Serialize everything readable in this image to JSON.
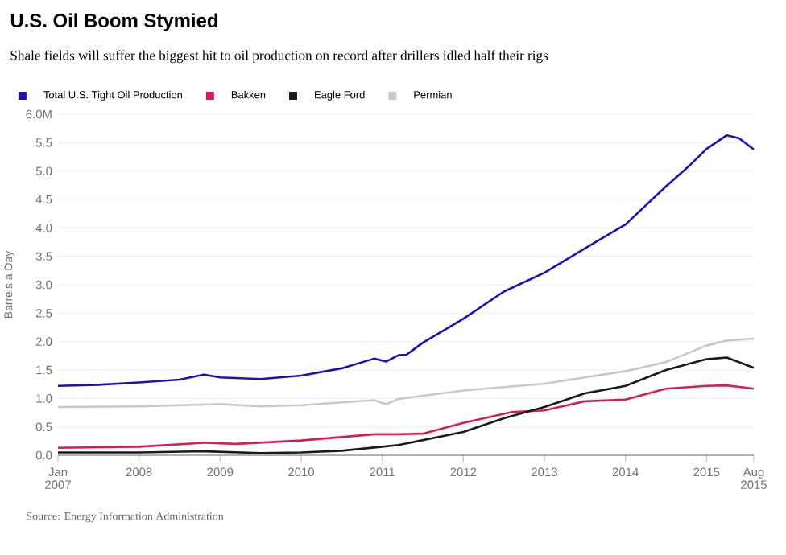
{
  "chart_data": {
    "type": "line",
    "title": "U.S. Oil Boom Stymied",
    "subtitle": "Shale fields will suffer the biggest hit to oil production on record after drillers idled half their rigs",
    "ylabel": "Barrels a Day",
    "annotations": [
      "Source: Energy Information Administration"
    ],
    "series": [
      {
        "name": "Total U.S. Tight Oil Production",
        "color": "#2010b0",
        "x": [
          2007.0,
          2007.5,
          2008.0,
          2008.5,
          2008.8,
          2009.0,
          2009.5,
          2010.0,
          2010.5,
          2010.9,
          2011.05,
          2011.2,
          2011.3,
          2011.5,
          2012.0,
          2012.5,
          2013.0,
          2013.5,
          2014.0,
          2014.5,
          2014.8,
          2015.0,
          2015.25,
          2015.4,
          2015.583
        ],
        "values": [
          1.22,
          1.24,
          1.28,
          1.33,
          1.42,
          1.37,
          1.34,
          1.4,
          1.53,
          1.7,
          1.65,
          1.76,
          1.77,
          1.98,
          2.4,
          2.88,
          3.21,
          3.64,
          4.06,
          4.73,
          5.11,
          5.39,
          5.63,
          5.58,
          5.38
        ]
      },
      {
        "name": "Bakken",
        "color": "#d81b60",
        "x": [
          2007.0,
          2008.0,
          2008.8,
          2009.2,
          2010.0,
          2010.5,
          2010.9,
          2011.2,
          2011.5,
          2012.0,
          2012.6,
          2013.0,
          2013.5,
          2014.0,
          2014.5,
          2015.0,
          2015.25,
          2015.583
        ],
        "values": [
          0.13,
          0.15,
          0.22,
          0.2,
          0.26,
          0.32,
          0.37,
          0.37,
          0.38,
          0.57,
          0.76,
          0.79,
          0.95,
          0.98,
          1.17,
          1.22,
          1.23,
          1.17
        ]
      },
      {
        "name": "Eagle Ford",
        "color": "#1a1a1a",
        "x": [
          2007.0,
          2008.0,
          2008.8,
          2009.5,
          2010.0,
          2010.5,
          2011.0,
          2011.2,
          2012.0,
          2012.5,
          2013.0,
          2013.5,
          2014.0,
          2014.5,
          2015.0,
          2015.25,
          2015.583
        ],
        "values": [
          0.05,
          0.05,
          0.07,
          0.04,
          0.05,
          0.08,
          0.15,
          0.18,
          0.41,
          0.65,
          0.85,
          1.09,
          1.22,
          1.5,
          1.69,
          1.72,
          1.54
        ]
      },
      {
        "name": "Permian",
        "color": "#c8c8c8",
        "x": [
          2007.0,
          2008.0,
          2009.0,
          2009.5,
          2010.0,
          2010.9,
          2011.05,
          2011.2,
          2012.0,
          2013.0,
          2014.0,
          2014.5,
          2015.0,
          2015.25,
          2015.583
        ],
        "values": [
          0.85,
          0.86,
          0.9,
          0.86,
          0.88,
          0.97,
          0.9,
          0.99,
          1.14,
          1.26,
          1.48,
          1.64,
          1.93,
          2.02,
          2.05
        ]
      }
    ],
    "xlim": [
      2007.0,
      2015.583
    ],
    "xticks": [
      {
        "value": 2007,
        "label": "Jan 2007"
      },
      2008,
      2009,
      2010,
      2011,
      2012,
      2013,
      2014,
      2015,
      {
        "value": 2015.583,
        "label": "Aug 2015"
      }
    ],
    "ylim": [
      0,
      6
    ],
    "yticks": [
      {
        "value": 0,
        "label": "0.0"
      },
      {
        "value": 0.5,
        "label": "0.5"
      },
      {
        "value": 1,
        "label": "1.0"
      },
      {
        "value": 1.5,
        "label": "1.5"
      },
      {
        "value": 2,
        "label": "2.0"
      },
      {
        "value": 2.5,
        "label": "2.5"
      },
      {
        "value": 3,
        "label": "3.0"
      },
      {
        "value": 3.5,
        "label": "3.5"
      },
      {
        "value": 4,
        "label": "4.0"
      },
      {
        "value": 4.5,
        "label": "4.5"
      },
      {
        "value": 5,
        "label": "5.0"
      },
      {
        "value": 5.5,
        "label": "5.5"
      },
      {
        "value": 6,
        "label": "6.0M"
      }
    ],
    "grid": "y",
    "legend": "top",
    "marker": "none",
    "line_style": "solid"
  }
}
